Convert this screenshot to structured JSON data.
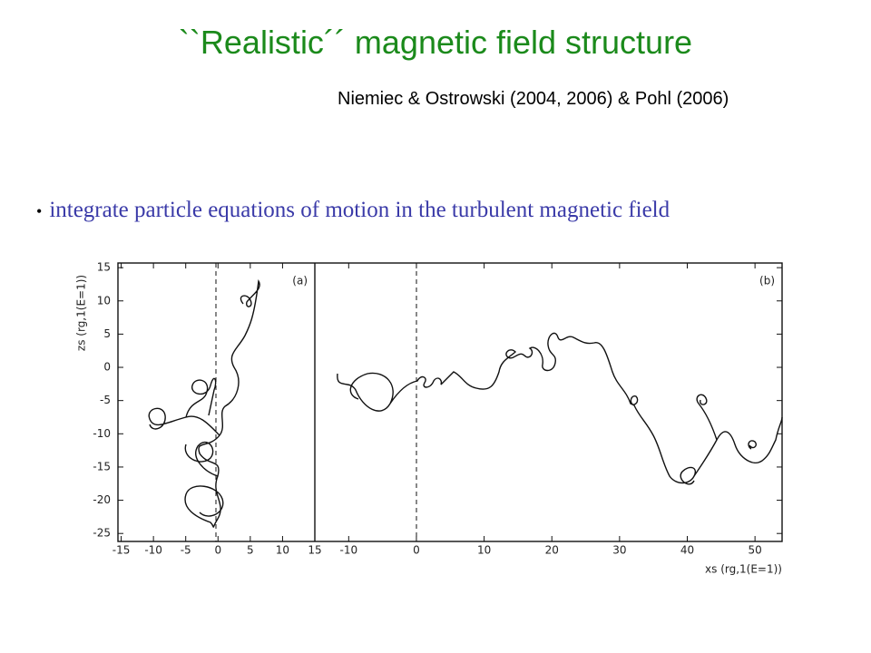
{
  "header": {
    "title": "``Realistic´´ magnetic field structure",
    "citation": "Niemiec & Ostrowski (2004, 2006) & Pohl (2006)"
  },
  "bullets": [
    "integrate particle equations of motion in the turbulent magnetic field"
  ],
  "figure": {
    "ylabel": "zs (rg,1(E=1))",
    "xlabel": "xs (rg,1(E=1))",
    "ylim": [
      -26.2,
      15.7
    ],
    "yticks": [
      15,
      10,
      5,
      0,
      -5,
      -10,
      -15,
      -20,
      -25
    ],
    "panels": [
      {
        "label": "(a)",
        "xlim": [
          -15.5,
          15
        ],
        "xticks": [
          -15,
          -10,
          -5,
          0,
          5,
          10,
          15
        ]
      },
      {
        "label": "(b)",
        "xlim": [
          -15,
          54
        ],
        "xticks": [
          -10,
          0,
          10,
          20,
          30,
          40,
          50
        ]
      }
    ]
  }
}
